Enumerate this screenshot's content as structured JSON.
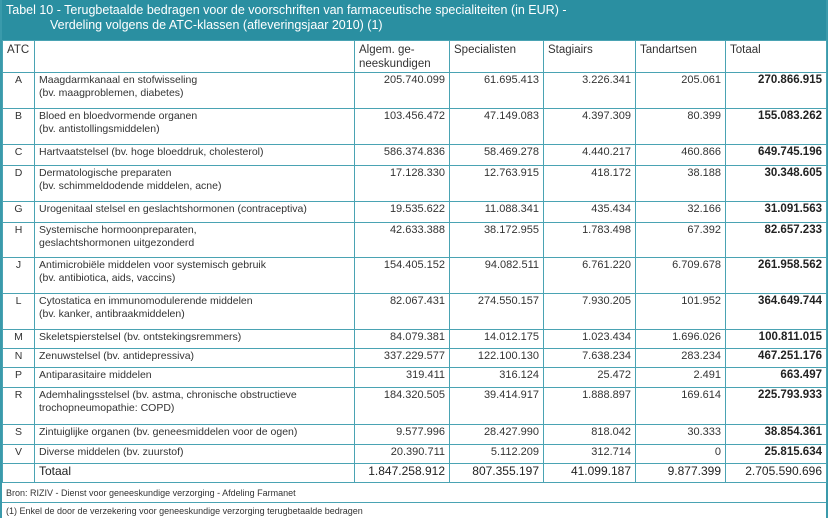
{
  "title": {
    "line1": "Tabel 10 - Terugbetaalde bedragen voor de voorschriften van farmaceutische specialiteiten (in EUR) -",
    "line2": "Verdeling volgens de ATC-klassen (afleveringsjaar 2010) (1)"
  },
  "columns": [
    "ATC",
    "",
    "Algem. ge-neeskundigen",
    "Specialisten",
    "Stagiairs",
    "Tandartsen",
    "Totaal"
  ],
  "rows": [
    {
      "atc": "A",
      "desc": "Maagdarmkanaal en stofwisseling",
      "sub": "(bv. maagproblemen, diabetes)",
      "v": [
        "205.740.099",
        "61.695.413",
        "3.226.341",
        "205.061",
        "270.866.915"
      ]
    },
    {
      "atc": "B",
      "desc": "Bloed en bloedvormende organen",
      "sub": "(bv. antistollingsmiddelen)",
      "v": [
        "103.456.472",
        "47.149.083",
        "4.397.309",
        "80.399",
        "155.083.262"
      ]
    },
    {
      "atc": "C",
      "desc": "Hartvaatstelsel (bv. hoge bloeddruk, cholesterol)",
      "sub": "",
      "v": [
        "586.374.836",
        "58.469.278",
        "4.440.217",
        "460.866",
        "649.745.196"
      ]
    },
    {
      "atc": "D",
      "desc": "Dermatologische preparaten",
      "sub": "(bv. schimmeldodende middelen, acne)",
      "v": [
        "17.128.330",
        "12.763.915",
        "418.172",
        "38.188",
        "30.348.605"
      ]
    },
    {
      "atc": "G",
      "desc": "Urogenitaal stelsel en geslachtshormonen (contraceptiva)",
      "sub": "",
      "v": [
        "19.535.622",
        "11.088.341",
        "435.434",
        "32.166",
        "31.091.563"
      ]
    },
    {
      "atc": "H",
      "desc": "Systemische hormoonpreparaten,",
      "sub": "geslachtshormonen uitgezonderd",
      "v": [
        "42.633.388",
        "38.172.955",
        "1.783.498",
        "67.392",
        "82.657.233"
      ]
    },
    {
      "atc": "J",
      "desc": "Antimicrobiële middelen voor systemisch gebruik",
      "sub": "(bv. antibiotica, aids, vaccins)",
      "v": [
        "154.405.152",
        "94.082.511",
        "6.761.220",
        "6.709.678",
        "261.958.562"
      ]
    },
    {
      "atc": "L",
      "desc": "Cytostatica en immunomodulerende middelen",
      "sub": "(bv. kanker, antibraakmiddelen)",
      "v": [
        "82.067.431",
        "274.550.157",
        "7.930.205",
        "101.952",
        "364.649.744"
      ]
    },
    {
      "atc": "M",
      "desc": "Skeletspierstelsel (bv. ontstekingsremmers)",
      "sub": "",
      "v": [
        "84.079.381",
        "14.012.175",
        "1.023.434",
        "1.696.026",
        "100.811.015"
      ]
    },
    {
      "atc": "N",
      "desc": "Zenuwstelsel (bv. antidepressiva)",
      "sub": "",
      "v": [
        "337.229.577",
        "122.100.130",
        "7.638.234",
        "283.234",
        "467.251.176"
      ]
    },
    {
      "atc": "P",
      "desc": "Antiparasitaire middelen",
      "sub": "",
      "v": [
        "319.411",
        "316.124",
        "25.472",
        "2.491",
        "663.497"
      ]
    },
    {
      "atc": "R",
      "desc": "Ademhalingsstelsel (bv. astma, chronische obstructieve",
      "sub": "trochopneumopathie: COPD)",
      "v": [
        "184.320.505",
        "39.414.917",
        "1.888.897",
        "169.614",
        "225.793.933"
      ]
    },
    {
      "atc": "S",
      "desc": "Zintuiglijke organen (bv. geneesmiddelen voor de ogen)",
      "sub": "",
      "v": [
        "9.577.996",
        "28.427.990",
        "818.042",
        "30.333",
        "38.854.361"
      ]
    },
    {
      "atc": "V",
      "desc": "Diverse middelen (bv. zuurstof)",
      "sub": "",
      "v": [
        "20.390.711",
        "5.112.209",
        "312.714",
        "0",
        "25.815.634"
      ]
    }
  ],
  "total": {
    "label": "Totaal",
    "v": [
      "1.847.258.912",
      "807.355.197",
      "41.099.187",
      "9.877.399",
      "2.705.590.696"
    ]
  },
  "source": "Bron: RIZIV - Dienst voor geneeskundige verzorging - Afdeling Farmanet",
  "footnote": "(1) Enkel de door de verzekering voor geneeskundige verzorging terugbetaalde bedragen",
  "colors": {
    "header": "#2a8fa1",
    "grid": "#4aa3b3"
  }
}
